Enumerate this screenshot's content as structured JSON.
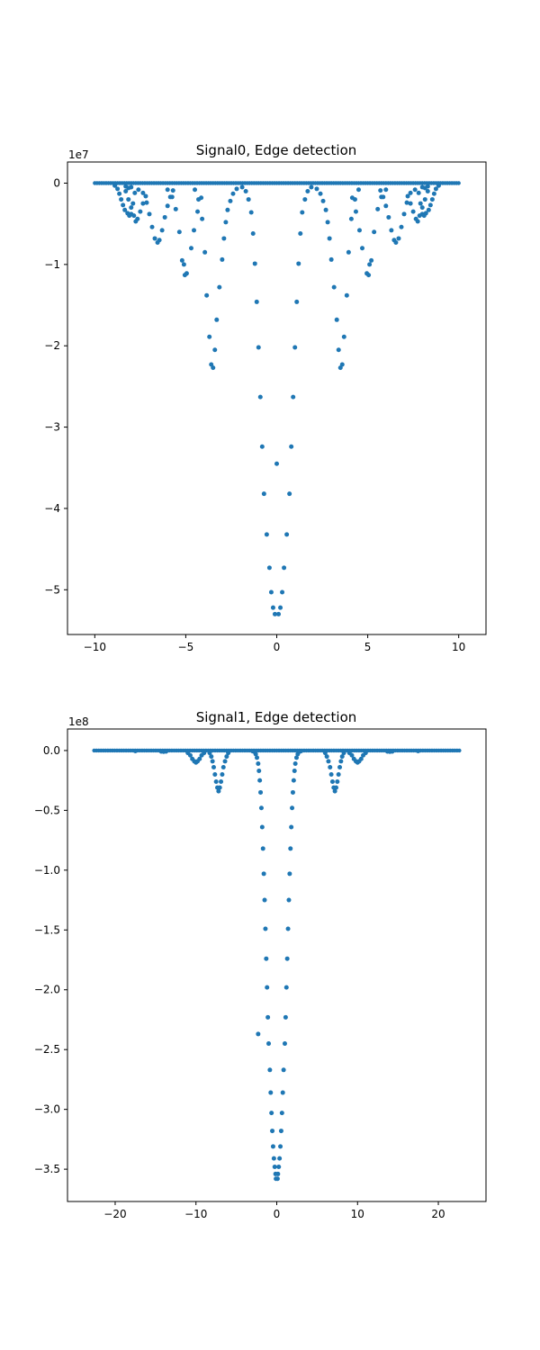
{
  "chart_data": [
    {
      "type": "scatter",
      "title": "Signal0, Edge detection",
      "xlabel": "",
      "ylabel": "",
      "y_multiplier": "1e7",
      "xlim": [
        -11.5,
        11.5
      ],
      "ylim": [
        -5.55,
        0.26
      ],
      "x_ticks": [
        -10,
        -5,
        0,
        5,
        10
      ],
      "x_tick_labels": [
        "−10",
        "−5",
        "0",
        "5",
        "10"
      ],
      "y_ticks": [
        0,
        -1,
        -2,
        -3,
        -4,
        -5
      ],
      "y_tick_labels": [
        "0",
        "−1",
        "−2",
        "−3",
        "−4",
        "−5"
      ],
      "grid": false,
      "marker_color": "#1f77b4",
      "baseline_y": 0,
      "baseline_x_range": [
        -10,
        10
      ],
      "points": [
        [
          -0.1,
          -5.3
        ],
        [
          0.1,
          -5.3
        ],
        [
          -0.2,
          -5.22
        ],
        [
          0.2,
          -5.22
        ],
        [
          -0.3,
          -5.03
        ],
        [
          0.3,
          -5.03
        ],
        [
          -0.4,
          -4.73
        ],
        [
          0.4,
          -4.73
        ],
        [
          -0.55,
          -4.32
        ],
        [
          0.55,
          -4.32
        ],
        [
          -0.7,
          -3.82
        ],
        [
          0.7,
          -3.82
        ],
        [
          0.0,
          -3.45
        ],
        [
          -0.8,
          -3.24
        ],
        [
          0.8,
          -3.24
        ],
        [
          -0.9,
          -2.63
        ],
        [
          0.9,
          -2.63
        ],
        [
          -1.0,
          -2.02
        ],
        [
          1.0,
          -2.02
        ],
        [
          -1.1,
          -1.46
        ],
        [
          1.1,
          -1.46
        ],
        [
          -1.2,
          -0.99
        ],
        [
          1.2,
          -0.99
        ],
        [
          -1.3,
          -0.62
        ],
        [
          1.3,
          -0.62
        ],
        [
          -1.4,
          -0.36
        ],
        [
          1.4,
          -0.36
        ],
        [
          -1.55,
          -0.2
        ],
        [
          1.55,
          -0.2
        ],
        [
          -1.7,
          -0.1
        ],
        [
          1.7,
          -0.1
        ],
        [
          -1.9,
          -0.05
        ],
        [
          1.9,
          -0.05
        ],
        [
          -3.5,
          -2.27
        ],
        [
          3.5,
          -2.27
        ],
        [
          -3.6,
          -2.23
        ],
        [
          3.6,
          -2.23
        ],
        [
          -3.4,
          -2.05
        ],
        [
          3.4,
          -2.05
        ],
        [
          -3.7,
          -1.89
        ],
        [
          3.7,
          -1.89
        ],
        [
          -3.3,
          -1.68
        ],
        [
          3.3,
          -1.68
        ],
        [
          -3.85,
          -1.38
        ],
        [
          3.85,
          -1.38
        ],
        [
          -3.15,
          -1.28
        ],
        [
          3.15,
          -1.28
        ],
        [
          -3.95,
          -0.85
        ],
        [
          3.95,
          -0.85
        ],
        [
          -3.0,
          -0.94
        ],
        [
          3.0,
          -0.94
        ],
        [
          -2.9,
          -0.68
        ],
        [
          2.9,
          -0.68
        ],
        [
          -4.1,
          -0.44
        ],
        [
          4.1,
          -0.44
        ],
        [
          -2.8,
          -0.48
        ],
        [
          2.8,
          -0.48
        ],
        [
          -2.7,
          -0.33
        ],
        [
          2.7,
          -0.33
        ],
        [
          -4.3,
          -0.2
        ],
        [
          4.3,
          -0.2
        ],
        [
          -2.55,
          -0.22
        ],
        [
          2.55,
          -0.22
        ],
        [
          -2.4,
          -0.13
        ],
        [
          2.4,
          -0.13
        ],
        [
          -4.5,
          -0.08
        ],
        [
          4.5,
          -0.08
        ],
        [
          -2.2,
          -0.07
        ],
        [
          2.2,
          -0.07
        ],
        [
          -5.05,
          -1.13
        ],
        [
          5.05,
          -1.13
        ],
        [
          -4.95,
          -1.11
        ],
        [
          4.95,
          -1.11
        ],
        [
          -5.1,
          -1.0
        ],
        [
          5.1,
          -1.0
        ],
        [
          -5.2,
          -0.95
        ],
        [
          5.2,
          -0.95
        ],
        [
          -4.7,
          -0.8
        ],
        [
          4.7,
          -0.8
        ],
        [
          -5.35,
          -0.6
        ],
        [
          5.35,
          -0.6
        ],
        [
          -4.55,
          -0.58
        ],
        [
          4.55,
          -0.58
        ],
        [
          -5.55,
          -0.32
        ],
        [
          5.55,
          -0.32
        ],
        [
          -4.35,
          -0.35
        ],
        [
          4.35,
          -0.35
        ],
        [
          -5.75,
          -0.17
        ],
        [
          5.75,
          -0.17
        ],
        [
          -4.15,
          -0.18
        ],
        [
          4.15,
          -0.18
        ],
        [
          -6.0,
          -0.08
        ],
        [
          6.0,
          -0.08
        ],
        [
          -6.55,
          -0.73
        ],
        [
          6.55,
          -0.73
        ],
        [
          -6.45,
          -0.7
        ],
        [
          6.45,
          -0.7
        ],
        [
          -6.7,
          -0.68
        ],
        [
          6.7,
          -0.68
        ],
        [
          -6.3,
          -0.58
        ],
        [
          6.3,
          -0.58
        ],
        [
          -6.85,
          -0.54
        ],
        [
          6.85,
          -0.54
        ],
        [
          -6.15,
          -0.42
        ],
        [
          6.15,
          -0.42
        ],
        [
          -7.0,
          -0.38
        ],
        [
          7.0,
          -0.38
        ],
        [
          -6.0,
          -0.28
        ],
        [
          6.0,
          -0.28
        ],
        [
          -7.15,
          -0.24
        ],
        [
          7.15,
          -0.24
        ],
        [
          -5.85,
          -0.17
        ],
        [
          5.85,
          -0.17
        ],
        [
          -7.35,
          -0.12
        ],
        [
          7.35,
          -0.12
        ],
        [
          -5.7,
          -0.09
        ],
        [
          5.7,
          -0.09
        ],
        [
          -7.75,
          -0.47
        ],
        [
          7.75,
          -0.47
        ],
        [
          -7.65,
          -0.44
        ],
        [
          7.65,
          -0.44
        ],
        [
          -7.85,
          -0.4
        ],
        [
          7.85,
          -0.4
        ],
        [
          -7.5,
          -0.35
        ],
        [
          7.5,
          -0.35
        ],
        [
          -8.0,
          -0.3
        ],
        [
          8.0,
          -0.3
        ],
        [
          -7.35,
          -0.25
        ],
        [
          7.35,
          -0.25
        ],
        [
          -8.15,
          -0.2
        ],
        [
          8.15,
          -0.2
        ],
        [
          -7.2,
          -0.16
        ],
        [
          7.2,
          -0.16
        ],
        [
          -8.3,
          -0.1
        ],
        [
          8.3,
          -0.1
        ],
        [
          -8.0,
          -0.38
        ],
        [
          8.0,
          -0.38
        ],
        [
          -8.1,
          -0.4
        ],
        [
          8.1,
          -0.4
        ],
        [
          -8.2,
          -0.37
        ],
        [
          8.2,
          -0.37
        ],
        [
          -8.35,
          -0.33
        ],
        [
          8.35,
          -0.33
        ],
        [
          -8.45,
          -0.27
        ],
        [
          8.45,
          -0.27
        ],
        [
          -8.55,
          -0.2
        ],
        [
          8.55,
          -0.2
        ],
        [
          -8.65,
          -0.13
        ],
        [
          8.65,
          -0.13
        ],
        [
          -8.75,
          -0.07
        ],
        [
          8.75,
          -0.07
        ],
        [
          -8.9,
          -0.03
        ],
        [
          8.9,
          -0.03
        ],
        [
          -8.3,
          -0.04
        ],
        [
          8.3,
          -0.04
        ],
        [
          -8.15,
          -0.06
        ],
        [
          8.15,
          -0.06
        ],
        [
          -8.0,
          -0.05
        ],
        [
          8.0,
          -0.05
        ],
        [
          -7.8,
          -0.12
        ],
        [
          7.8,
          -0.12
        ],
        [
          -7.6,
          -0.08
        ],
        [
          7.6,
          -0.08
        ],
        [
          -7.9,
          -0.25
        ],
        [
          7.9,
          -0.25
        ]
      ]
    },
    {
      "type": "scatter",
      "title": "Signal1, Edge detection",
      "xlabel": "",
      "ylabel": "",
      "y_multiplier": "1e8",
      "xlim": [
        -25.9,
        25.9
      ],
      "ylim": [
        -3.77,
        0.18
      ],
      "x_ticks": [
        -20,
        -10,
        0,
        10,
        20
      ],
      "x_tick_labels": [
        "−20",
        "−10",
        "0",
        "10",
        "20"
      ],
      "y_ticks": [
        0.0,
        -0.5,
        -1.0,
        -1.5,
        -2.0,
        -2.5,
        -3.0,
        -3.5
      ],
      "y_tick_labels": [
        "0.0",
        "−0.5",
        "−1.0",
        "−1.5",
        "−2.0",
        "−2.5",
        "−3.0",
        "−3.5"
      ],
      "grid": false,
      "marker_color": "#1f77b4",
      "baseline_y": 0,
      "baseline_x_range": [
        -22.6,
        22.6
      ],
      "points": [
        [
          -0.1,
          -3.58
        ],
        [
          0.1,
          -3.58
        ],
        [
          -0.15,
          -3.54
        ],
        [
          0.15,
          -3.54
        ],
        [
          -0.25,
          -3.48
        ],
        [
          0.25,
          -3.48
        ],
        [
          -0.35,
          -3.41
        ],
        [
          0.35,
          -3.41
        ],
        [
          -0.45,
          -3.31
        ],
        [
          0.45,
          -3.31
        ],
        [
          -0.55,
          -3.18
        ],
        [
          0.55,
          -3.18
        ],
        [
          -0.65,
          -3.03
        ],
        [
          0.65,
          -3.03
        ],
        [
          -0.75,
          -2.86
        ],
        [
          0.75,
          -2.86
        ],
        [
          -0.85,
          -2.67
        ],
        [
          0.85,
          -2.67
        ],
        [
          -1.0,
          -2.45
        ],
        [
          1.0,
          -2.45
        ],
        [
          -2.3,
          -2.37
        ],
        [
          -1.1,
          -2.23
        ],
        [
          1.1,
          -2.23
        ],
        [
          -1.2,
          -1.98
        ],
        [
          1.2,
          -1.98
        ],
        [
          -1.3,
          -1.74
        ],
        [
          1.3,
          -1.74
        ],
        [
          -1.4,
          -1.49
        ],
        [
          1.4,
          -1.49
        ],
        [
          -1.5,
          -1.25
        ],
        [
          1.5,
          -1.25
        ],
        [
          -1.6,
          -1.03
        ],
        [
          1.6,
          -1.03
        ],
        [
          -1.7,
          -0.82
        ],
        [
          1.7,
          -0.82
        ],
        [
          -1.8,
          -0.64
        ],
        [
          1.8,
          -0.64
        ],
        [
          -1.9,
          -0.48
        ],
        [
          1.9,
          -0.48
        ],
        [
          -2.0,
          -0.35
        ],
        [
          2.0,
          -0.35
        ],
        [
          -2.1,
          -0.25
        ],
        [
          2.1,
          -0.25
        ],
        [
          -2.2,
          -0.17
        ],
        [
          2.2,
          -0.17
        ],
        [
          -2.3,
          -0.11
        ],
        [
          2.3,
          -0.11
        ],
        [
          -2.45,
          -0.06
        ],
        [
          2.45,
          -0.06
        ],
        [
          -2.6,
          -0.03
        ],
        [
          2.6,
          -0.03
        ],
        [
          -2.8,
          -0.01
        ],
        [
          2.8,
          -0.01
        ],
        [
          -3.0,
          -0.005
        ],
        [
          3.0,
          -0.005
        ],
        [
          -7.2,
          -0.34
        ],
        [
          7.2,
          -0.34
        ],
        [
          -7.05,
          -0.31
        ],
        [
          7.05,
          -0.31
        ],
        [
          -7.35,
          -0.31
        ],
        [
          7.35,
          -0.31
        ],
        [
          -7.5,
          -0.26
        ],
        [
          7.5,
          -0.26
        ],
        [
          -6.9,
          -0.26
        ],
        [
          6.9,
          -0.26
        ],
        [
          -6.75,
          -0.2
        ],
        [
          6.75,
          -0.2
        ],
        [
          -7.65,
          -0.2
        ],
        [
          7.65,
          -0.2
        ],
        [
          -6.6,
          -0.14
        ],
        [
          6.6,
          -0.14
        ],
        [
          -7.8,
          -0.14
        ],
        [
          7.8,
          -0.14
        ],
        [
          -6.4,
          -0.09
        ],
        [
          6.4,
          -0.09
        ],
        [
          -7.95,
          -0.09
        ],
        [
          7.95,
          -0.09
        ],
        [
          -6.2,
          -0.05
        ],
        [
          6.2,
          -0.05
        ],
        [
          -8.1,
          -0.05
        ],
        [
          8.1,
          -0.05
        ],
        [
          -6.0,
          -0.02
        ],
        [
          6.0,
          -0.02
        ],
        [
          -8.3,
          -0.02
        ],
        [
          8.3,
          -0.02
        ],
        [
          -10.0,
          -0.1
        ],
        [
          10.0,
          -0.1
        ],
        [
          -10.2,
          -0.09
        ],
        [
          10.2,
          -0.09
        ],
        [
          -9.8,
          -0.09
        ],
        [
          9.8,
          -0.09
        ],
        [
          -10.45,
          -0.07
        ],
        [
          10.45,
          -0.07
        ],
        [
          -9.55,
          -0.07
        ],
        [
          9.55,
          -0.07
        ],
        [
          -10.7,
          -0.04
        ],
        [
          10.7,
          -0.04
        ],
        [
          -9.3,
          -0.04
        ],
        [
          9.3,
          -0.04
        ],
        [
          -11.0,
          -0.02
        ],
        [
          11.0,
          -0.02
        ],
        [
          -9.0,
          -0.02
        ],
        [
          9.0,
          -0.02
        ],
        [
          -14.0,
          -0.01
        ],
        [
          14.0,
          -0.01
        ],
        [
          -13.7,
          -0.008
        ],
        [
          13.7,
          -0.008
        ],
        [
          -14.3,
          -0.008
        ],
        [
          14.3,
          -0.008
        ],
        [
          -17.5,
          -0.004
        ],
        [
          17.5,
          -0.004
        ]
      ]
    }
  ]
}
